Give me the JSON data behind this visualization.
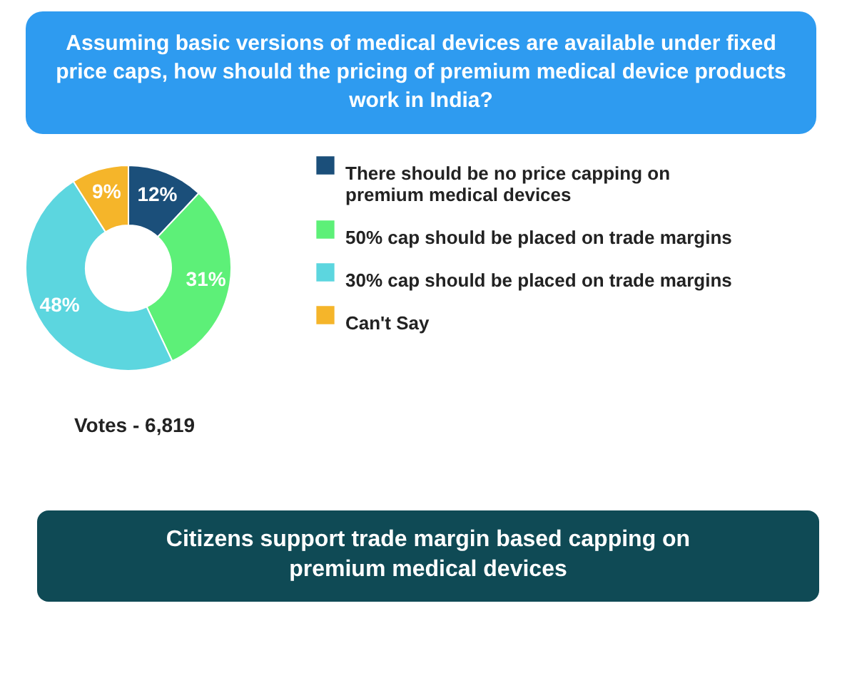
{
  "chart_data": {
    "type": "donut",
    "title": "Assuming basic versions of medical devices are available under fixed price caps, how should the pricing of premium medical device products work in India?",
    "categories": [
      "There should be no price capping on premium medical devices",
      "50% cap should be placed on trade margins",
      "30% cap should be placed on trade margins",
      "Can't Say"
    ],
    "values": [
      12,
      31,
      48,
      9
    ],
    "colors": [
      "#1b4f7a",
      "#5df078",
      "#5cd6df",
      "#f5b52a"
    ],
    "value_labels": [
      "12%",
      "31%",
      "48%",
      "9%"
    ],
    "legend": "right",
    "annotations": [
      "Votes - 6,819",
      "Citizens support trade margin based capping on premium medical devices"
    ]
  }
}
